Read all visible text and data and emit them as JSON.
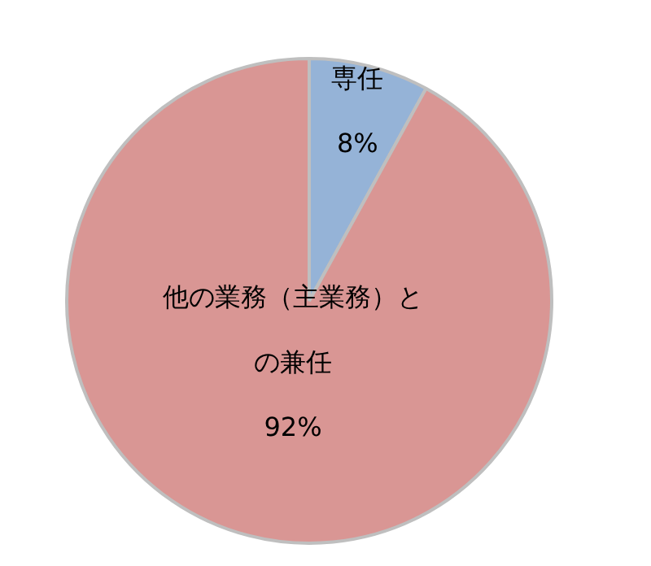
{
  "chart_data": {
    "type": "pie",
    "categories": [
      "専任",
      "他の業務（主業務）との兼任"
    ],
    "values": [
      8,
      92
    ],
    "colors": [
      "#95b3d7",
      "#d99694"
    ],
    "value_labels": [
      "8%",
      "92%"
    ],
    "legend": false
  }
}
